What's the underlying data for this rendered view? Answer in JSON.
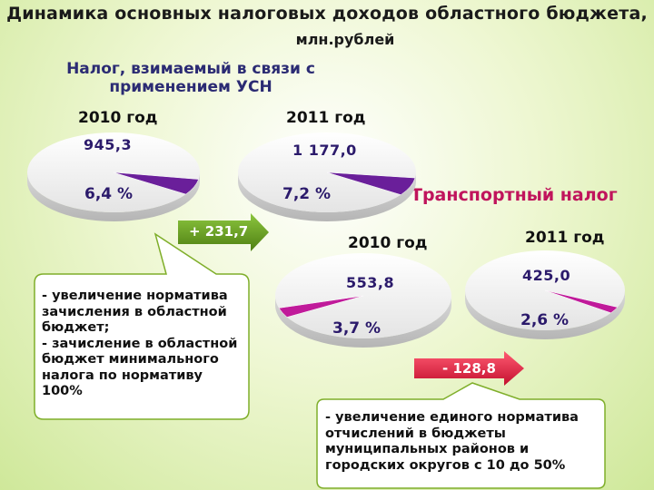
{
  "title": {
    "line1": "Динамика основных налоговых доходов областного бюджета,",
    "line2": "млн.рублей"
  },
  "chart_data": [
    {
      "type": "pie",
      "title": "Налог, взимаемый в связи с применением УСН",
      "pies": [
        {
          "year": "2010 год",
          "value_label": "945,3",
          "share_pct": 6.4,
          "share_label": "6,4 %"
        },
        {
          "year": "2011 год",
          "value_label": "1 177,0",
          "share_pct": 7.2,
          "share_label": "7,2 %"
        }
      ],
      "change_label": "+ 231,7",
      "note": "- увеличение норматива зачисления в областной бюджет;\n- зачисление в областной бюджет минимального налога по нормативу 100%"
    },
    {
      "type": "pie",
      "title": "Транспортный налог",
      "pies": [
        {
          "year": "2010 год",
          "value_label": "553,8",
          "share_pct": 3.7,
          "share_label": "3,7 %"
        },
        {
          "year": "2011 год",
          "value_label": "425,0",
          "share_pct": 2.6,
          "share_label": "2,6 %"
        }
      ],
      "change_label": "- 128,8",
      "note": "- увеличение единого норматива отчислений в бюджеты муниципальных районов и городских округов с 10 до 50%"
    }
  ],
  "colors": {
    "slice": "#6a1f9a",
    "slice_transport": "#c01a9a",
    "pie_body": "#f7f7f7",
    "arrow_usn": "#6a9a1f",
    "arrow_transport": "#e8294e",
    "callout_fill": "#ffffff",
    "callout_border": "#7fae2a"
  }
}
